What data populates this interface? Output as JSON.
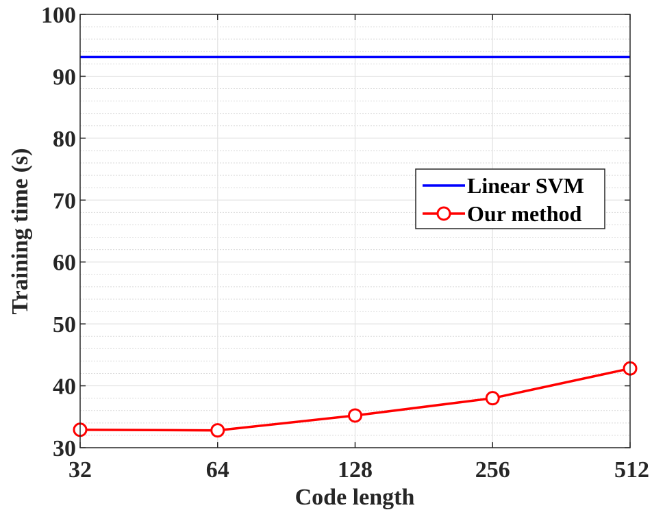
{
  "chart_data": {
    "type": "line",
    "xscale": "log2",
    "x": [
      32,
      64,
      128,
      256,
      512
    ],
    "xticks": [
      32,
      64,
      128,
      256,
      512
    ],
    "xtick_labels": [
      "32",
      "64",
      "128",
      "256",
      "512"
    ],
    "yticks": [
      30,
      40,
      50,
      60,
      70,
      80,
      90,
      100
    ],
    "ytick_labels": [
      "30",
      "40",
      "50",
      "60",
      "70",
      "80",
      "90",
      "100"
    ],
    "xlim": [
      32,
      512
    ],
    "ylim": [
      30,
      100
    ],
    "xlabel": "Code length",
    "ylabel": "Training time (s)",
    "title": "",
    "grid": true,
    "minor_grid_y": true,
    "legend": {
      "position": "center-right"
    },
    "series": [
      {
        "name": "Linear SVM",
        "color": "#0000ff",
        "marker": "none",
        "values": [
          93.1,
          93.1,
          93.1,
          93.1,
          93.1
        ]
      },
      {
        "name": "Our method",
        "color": "#ff0000",
        "marker": "circle",
        "values": [
          32.9,
          32.8,
          35.2,
          38.0,
          42.8
        ]
      }
    ]
  }
}
